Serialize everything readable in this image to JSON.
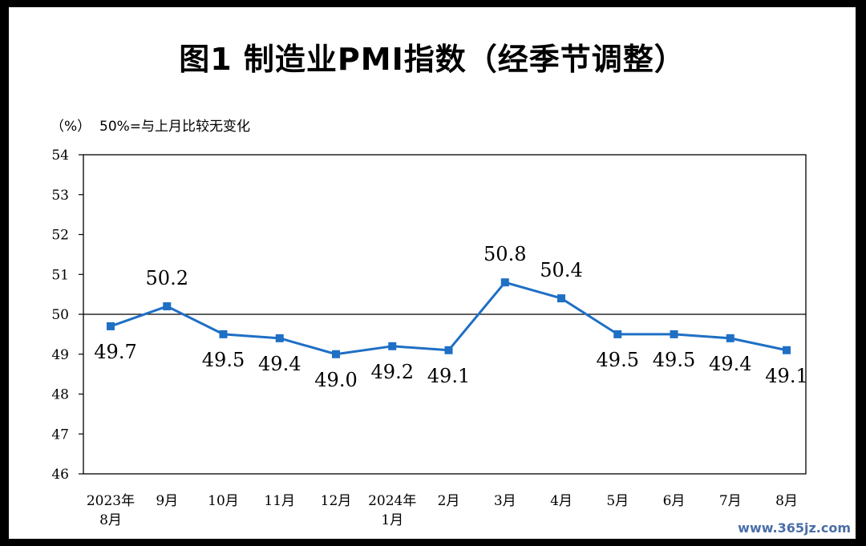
{
  "watermark": "www.365jz.com",
  "chart_data": {
    "type": "line",
    "title": "图1  制造业PMI指数（经季节调整）",
    "ylabel": "（%）",
    "note": "50%=与上月比较无变化",
    "ylim": [
      46,
      54
    ],
    "yticks": [
      "46",
      "47",
      "48",
      "49",
      "50",
      "51",
      "52",
      "53",
      "54"
    ],
    "reference_line": 50,
    "categories": [
      [
        "2023年",
        "8月"
      ],
      [
        "9月"
      ],
      [
        "10月"
      ],
      [
        "11月"
      ],
      [
        "12月"
      ],
      [
        "2024年",
        "1月"
      ],
      [
        "2月"
      ],
      [
        "3月"
      ],
      [
        "4月"
      ],
      [
        "5月"
      ],
      [
        "6月"
      ],
      [
        "7月"
      ],
      [
        "8月"
      ]
    ],
    "series": [
      {
        "values": [
          49.7,
          50.2,
          49.5,
          49.4,
          49.0,
          49.2,
          49.1,
          50.8,
          50.4,
          49.5,
          49.5,
          49.4,
          49.1
        ],
        "labels": [
          "49.7",
          "50.2",
          "49.5",
          "49.4",
          "49.0",
          "49.2",
          "49.1",
          "50.8",
          "50.4",
          "49.5",
          "49.5",
          "49.4",
          "49.1"
        ],
        "label_positions": [
          "below",
          "above",
          "below",
          "below",
          "below",
          "below",
          "below",
          "above",
          "above",
          "below",
          "below",
          "below",
          "below"
        ],
        "color": "#1f6fc5"
      }
    ],
    "grid": false,
    "legend": "none"
  }
}
